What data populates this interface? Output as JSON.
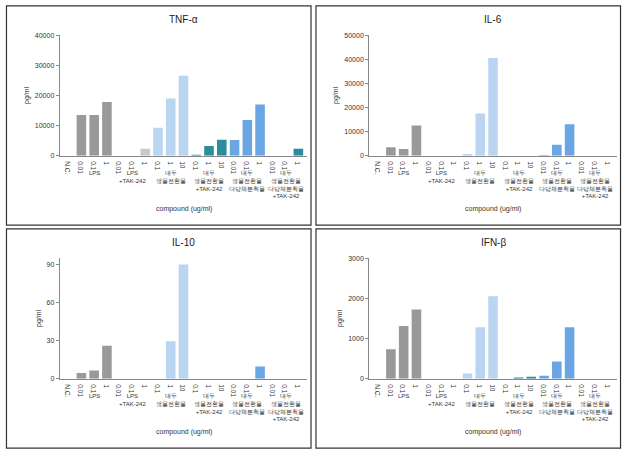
{
  "chart_data": [
    {
      "type": "bar",
      "title": "TNF-α",
      "y_label": "pg/ml",
      "x_label": "compound (ug/ml)",
      "categories": [
        "N.C.",
        "0.01",
        "0.1",
        "1",
        "0.01",
        "0.1",
        "1",
        "0.1",
        "1",
        "10",
        "0.1",
        "1",
        "10",
        "0.01",
        "0.1",
        "1",
        "0.01",
        "0.1",
        "1"
      ],
      "category_groups": [
        null,
        "LPS",
        "LPS",
        "LPS",
        "LPS +TAK-242",
        "LPS +TAK-242",
        "LPS +TAK-242",
        "대두 생물전환물",
        "대두 생물전환물",
        "대두 생물전환물",
        "대두 생물전환물+TAK-242",
        "대두 생물전환물+TAK-242",
        "대두 생물전환물+TAK-242",
        "대두 생물전환물 다당체분획물",
        "대두 생물전환물 다당체분획물",
        "대두 생물전환물 다당체분획물",
        "대두 생물전환물 다당체분획물 +TAK-242",
        "대두 생물전환물 다당체분획물 +TAK-242",
        "대두 생물전환물 다당체분획물 +TAK-242"
      ],
      "values": [
        0,
        13500,
        13500,
        17800,
        0,
        0,
        2300,
        9300,
        19000,
        26500,
        300,
        3200,
        5300,
        5200,
        11800,
        17000,
        0,
        0,
        2300
      ],
      "colors": [
        "#999999",
        "#999999",
        "#999999",
        "#999999",
        "#c8c8c8",
        "#c8c8c8",
        "#c8c8c8",
        "#b9d5f2",
        "#b9d5f2",
        "#b9d5f2",
        "#2a8c9c",
        "#2a8c9c",
        "#2a8c9c",
        "#6aa6e4",
        "#6aa6e4",
        "#6aa6e4",
        "#2a8c9c",
        "#2a8c9c",
        "#2a8c9c"
      ],
      "ylim": [
        0,
        40000
      ],
      "yticks": [
        0,
        10000,
        20000,
        30000,
        40000
      ],
      "grid": false
    },
    {
      "type": "bar",
      "title": "IL-6",
      "y_label": "pg/ml",
      "x_label": "compound (ug/ml)",
      "categories": [
        "N.C.",
        "0.01",
        "0.1",
        "1",
        "0.01",
        "0.1",
        "1",
        "0.1",
        "1",
        "10",
        "0.1",
        "1",
        "10",
        "0.01",
        "0.1",
        "1",
        "0.01",
        "0.1",
        "1"
      ],
      "category_groups": [
        null,
        "LPS",
        "LPS",
        "LPS",
        "LPS +TAK-242",
        "LPS +TAK-242",
        "LPS +TAK-242",
        "대두 생물전환물",
        "대두 생물전환물",
        "대두 생물전환물",
        "대두 생물전환물+TAK-242",
        "대두 생물전환물+TAK-242",
        "대두 생물전환물+TAK-242",
        "대두 생물전환물 다당체분획물",
        "대두 생물전환물 다당체분획물",
        "대두 생물전환물 다당체분획물",
        "대두 생물전환물 다당체분획물 +TAK-242",
        "대두 생물전환물 다당체분획물 +TAK-242",
        "대두 생물전환물 다당체분획물 +TAK-242"
      ],
      "values": [
        0,
        3500,
        2800,
        12500,
        0,
        0,
        0,
        700,
        17500,
        40500,
        0,
        0,
        0,
        300,
        4500,
        13000,
        0,
        0,
        0
      ],
      "colors": [
        "#999999",
        "#999999",
        "#999999",
        "#999999",
        "#c8c8c8",
        "#c8c8c8",
        "#c8c8c8",
        "#b9d5f2",
        "#b9d5f2",
        "#b9d5f2",
        "#2a8c9c",
        "#2a8c9c",
        "#2a8c9c",
        "#6aa6e4",
        "#6aa6e4",
        "#6aa6e4",
        "#2a8c9c",
        "#2a8c9c",
        "#2a8c9c"
      ],
      "ylim": [
        0,
        50000
      ],
      "yticks": [
        0,
        10000,
        20000,
        30000,
        40000,
        50000
      ],
      "grid": false
    },
    {
      "type": "bar",
      "title": "IL-10",
      "y_label": "pg/ml",
      "x_label": "compound (ug/ml)",
      "categories": [
        "N.C.",
        "0.01",
        "0.1",
        "1",
        "0.01",
        "0.1",
        "1",
        "0.1",
        "1",
        "10",
        "0.1",
        "1",
        "10",
        "0.01",
        "0.1",
        "1",
        "0.01",
        "0.1",
        "1"
      ],
      "category_groups": [
        null,
        "LPS",
        "LPS",
        "LPS",
        "LPS +TAK-242",
        "LPS +TAK-242",
        "LPS +TAK-242",
        "대두 생물전환물",
        "대두 생물전환물",
        "대두 생물전환물",
        "대두 생물전환물+TAK-242",
        "대두 생물전환물+TAK-242",
        "대두 생물전환물+TAK-242",
        "대두 생물전환물 다당체분획물",
        "대두 생물전환물 다당체분획물",
        "대두 생물전환물 다당체분획물",
        "대두 생물전환물 다당체분획물 +TAK-242",
        "대두 생물전환물 다당체분획물 +TAK-242",
        "대두 생물전환물 다당체분획물 +TAK-242"
      ],
      "values": [
        0,
        4.5,
        6.5,
        26,
        0,
        0,
        0,
        0,
        29.5,
        90,
        0,
        0,
        0,
        0,
        0,
        9.5,
        0,
        0,
        0
      ],
      "colors": [
        "#999999",
        "#999999",
        "#999999",
        "#999999",
        "#c8c8c8",
        "#c8c8c8",
        "#c8c8c8",
        "#b9d5f2",
        "#b9d5f2",
        "#b9d5f2",
        "#2a8c9c",
        "#2a8c9c",
        "#2a8c9c",
        "#6aa6e4",
        "#6aa6e4",
        "#6aa6e4",
        "#2a8c9c",
        "#2a8c9c",
        "#2a8c9c"
      ],
      "ylim": [
        0,
        95
      ],
      "yticks": [
        0,
        30,
        60,
        90
      ],
      "grid": false
    },
    {
      "type": "bar",
      "title": "IFN-β",
      "y_label": "pg/ml",
      "x_label": "compound (ug/ml)",
      "categories": [
        "N.C.",
        "0.01",
        "0.1",
        "1",
        "0.01",
        "0.1",
        "1",
        "0.1",
        "1",
        "10",
        "0.1",
        "1",
        "10",
        "0.01",
        "0.1",
        "1",
        "0.01",
        "0.1",
        "1"
      ],
      "category_groups": [
        null,
        "LPS",
        "LPS",
        "LPS",
        "LPS +TAK-242",
        "LPS +TAK-242",
        "LPS +TAK-242",
        "대두 생물전환물",
        "대두 생물전환물",
        "대두 생물전환물",
        "대두 생물전환물+TAK-242",
        "대두 생물전환물+TAK-242",
        "대두 생물전환물+TAK-242",
        "대두 생물전환물 다당체분획물",
        "대두 생물전환물 다당체분획물",
        "대두 생물전환물 다당체분획물",
        "대두 생물전환물 다당체분획물 +TAK-242",
        "대두 생물전환물 다당체분획물 +TAK-242",
        "대두 생물전환물 다당체분획물 +TAK-242"
      ],
      "values": [
        0,
        730,
        1310,
        1720,
        0,
        0,
        0,
        130,
        1280,
        2050,
        0,
        30,
        50,
        70,
        430,
        1280,
        0,
        0,
        0
      ],
      "colors": [
        "#999999",
        "#999999",
        "#999999",
        "#999999",
        "#c8c8c8",
        "#c8c8c8",
        "#c8c8c8",
        "#b9d5f2",
        "#b9d5f2",
        "#b9d5f2",
        "#2a8c9c",
        "#2a8c9c",
        "#2a8c9c",
        "#6aa6e4",
        "#6aa6e4",
        "#6aa6e4",
        "#2a8c9c",
        "#2a8c9c",
        "#2a8c9c"
      ],
      "ylim": [
        0,
        3000
      ],
      "yticks": [
        0,
        1000,
        2000,
        3000
      ],
      "grid": false
    }
  ]
}
